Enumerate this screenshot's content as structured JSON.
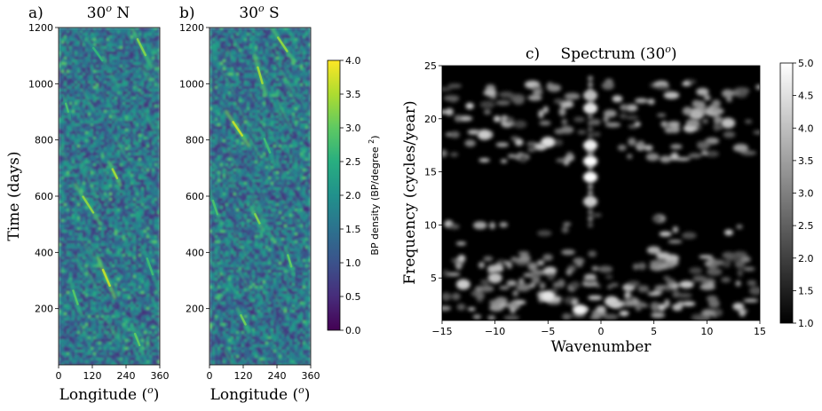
{
  "chart_data": [
    {
      "type": "heatmap",
      "panel_label": "a)",
      "title": "30",
      "title_sup": "o",
      "title_suffix": " N",
      "xlabel": "Longitude (",
      "xlabel_sup": "o",
      "xlabel_suffix": ")",
      "ylabel": "Time (days)",
      "xlim": [
        0,
        360
      ],
      "ylim": [
        0,
        1200
      ],
      "xticks": [
        0,
        120,
        240,
        360
      ],
      "yticks": [
        200,
        400,
        600,
        800,
        1000,
        1200
      ],
      "colormap": "viridis",
      "color_range": [
        0.0,
        4.0
      ],
      "drift_bands": [
        {
          "x0": 60,
          "y0": 640,
          "x1": 150,
          "y1": 500,
          "v": 3.3
        },
        {
          "x0": 140,
          "y0": 380,
          "x1": 200,
          "y1": 240,
          "v": 3.6
        },
        {
          "x0": 180,
          "y0": 720,
          "x1": 220,
          "y1": 640,
          "v": 3.4
        },
        {
          "x0": 20,
          "y0": 950,
          "x1": 40,
          "y1": 880,
          "v": 2.8
        },
        {
          "x0": 260,
          "y0": 1200,
          "x1": 330,
          "y1": 1060,
          "v": 3.2
        },
        {
          "x0": 40,
          "y0": 300,
          "x1": 80,
          "y1": 180,
          "v": 2.9
        },
        {
          "x0": 260,
          "y0": 140,
          "x1": 300,
          "y1": 40,
          "v": 3.0
        },
        {
          "x0": 300,
          "y0": 420,
          "x1": 350,
          "y1": 280,
          "v": 2.7
        },
        {
          "x0": 100,
          "y0": 1160,
          "x1": 180,
          "y1": 1050,
          "v": 2.6
        }
      ]
    },
    {
      "type": "heatmap",
      "panel_label": "b)",
      "title": "30",
      "title_sup": "o",
      "title_suffix": " S",
      "xlabel": "Longitude (",
      "xlabel_sup": "o",
      "xlabel_suffix": ")",
      "ylabel": "",
      "xlim": [
        0,
        360
      ],
      "ylim": [
        0,
        1200
      ],
      "xticks": [
        0,
        120,
        240,
        360
      ],
      "yticks": [
        200,
        400,
        600,
        800,
        1000,
        1200
      ],
      "colormap": "viridis",
      "color_range": [
        0.0,
        4.0
      ],
      "colorbar": {
        "label": "BP density (BP/degree ",
        "label_sup": "2",
        "label_suffix": ")",
        "ticks": [
          "0.0",
          "0.5",
          "1.0",
          "1.5",
          "2.0",
          "2.5",
          "3.0",
          "3.5",
          "4.0"
        ]
      },
      "drift_bands": [
        {
          "x0": 60,
          "y0": 900,
          "x1": 140,
          "y1": 780,
          "v": 3.6
        },
        {
          "x0": 160,
          "y0": 1100,
          "x1": 200,
          "y1": 960,
          "v": 3.4
        },
        {
          "x0": 220,
          "y0": 1200,
          "x1": 300,
          "y1": 1080,
          "v": 3.3
        },
        {
          "x0": 150,
          "y0": 560,
          "x1": 190,
          "y1": 480,
          "v": 3.2
        },
        {
          "x0": 100,
          "y0": 200,
          "x1": 140,
          "y1": 120,
          "v": 3.1
        },
        {
          "x0": 270,
          "y0": 420,
          "x1": 300,
          "y1": 320,
          "v": 3.0
        },
        {
          "x0": 0,
          "y0": 620,
          "x1": 40,
          "y1": 500,
          "v": 2.8
        },
        {
          "x0": 180,
          "y0": 840,
          "x1": 230,
          "y1": 720,
          "v": 2.7
        }
      ]
    },
    {
      "type": "heatmap",
      "panel_label": "c)",
      "title": "Spectrum (30",
      "title_sup": "o",
      "title_suffix": ")",
      "xlabel": "Wavenumber",
      "ylabel": "Frequency (cycles/year)",
      "xlim": [
        -15,
        15
      ],
      "ylim": [
        1,
        25
      ],
      "xticks": [
        -15,
        -10,
        -5,
        0,
        5,
        10,
        15
      ],
      "yticks": [
        5,
        10,
        15,
        20,
        25
      ],
      "colormap": "gray",
      "color_range": [
        1.0,
        5.0
      ],
      "colorbar": {
        "label": "",
        "ticks": [
          "1.0",
          "1.5",
          "2.0",
          "2.5",
          "3.0",
          "3.5",
          "4.0",
          "4.5",
          "5.0"
        ]
      },
      "peaks": [
        {
          "k": -1,
          "f": 14.5,
          "v": 5.0
        },
        {
          "k": -1,
          "f": 16.0,
          "v": 5.0
        },
        {
          "k": -1,
          "f": 17.5,
          "v": 4.8
        },
        {
          "k": -1,
          "f": 12.2,
          "v": 4.2
        },
        {
          "k": -1,
          "f": 21.0,
          "v": 4.6
        },
        {
          "k": -1,
          "f": 22.2,
          "v": 4.0
        },
        {
          "k": -5,
          "f": 3.3,
          "v": 4.6
        },
        {
          "k": -2,
          "f": 2.0,
          "v": 4.8
        },
        {
          "k": -13,
          "f": 4.4,
          "v": 4.2
        },
        {
          "k": -10,
          "f": 5.0,
          "v": 4.0
        },
        {
          "k": 1,
          "f": 2.8,
          "v": 4.2
        },
        {
          "k": -11,
          "f": 18.5,
          "v": 4.2
        },
        {
          "k": -5,
          "f": 17.8,
          "v": 4.5
        },
        {
          "k": 12,
          "f": 19.6,
          "v": 4.0
        },
        {
          "k": 9,
          "f": 20.4,
          "v": 3.8
        }
      ]
    }
  ]
}
